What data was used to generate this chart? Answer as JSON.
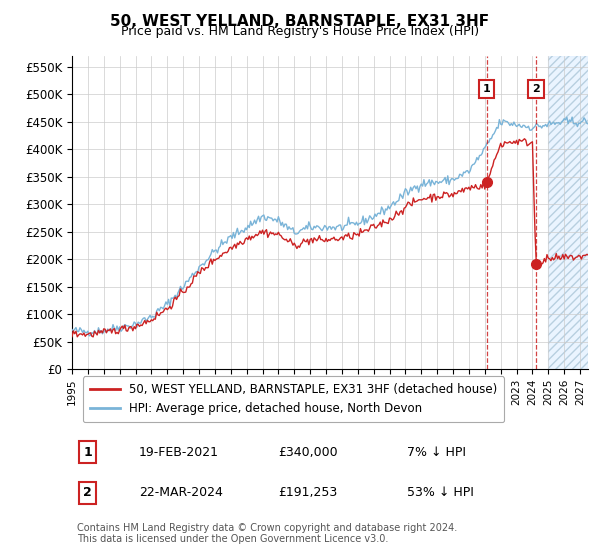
{
  "title": "50, WEST YELLAND, BARNSTAPLE, EX31 3HF",
  "subtitle": "Price paid vs. HM Land Registry's House Price Index (HPI)",
  "ylim": [
    0,
    570000
  ],
  "yticks": [
    0,
    50000,
    100000,
    150000,
    200000,
    250000,
    300000,
    350000,
    400000,
    450000,
    500000,
    550000
  ],
  "ytick_labels": [
    "£0",
    "£50K",
    "£100K",
    "£150K",
    "£200K",
    "£250K",
    "£300K",
    "£350K",
    "£400K",
    "£450K",
    "£500K",
    "£550K"
  ],
  "hpi_color": "#7ab4d8",
  "price_color": "#cc2222",
  "point1_year": 2021.12,
  "point1_price": 340000,
  "point1_date": "19-FEB-2021",
  "point1_pct": "7% ↓ HPI",
  "point2_year": 2024.22,
  "point2_price": 191253,
  "point2_date": "22-MAR-2024",
  "point2_pct": "53% ↓ HPI",
  "legend_label1": "50, WEST YELLAND, BARNSTAPLE, EX31 3HF (detached house)",
  "legend_label2": "HPI: Average price, detached house, North Devon",
  "footer": "Contains HM Land Registry data © Crown copyright and database right 2024.\nThis data is licensed under the Open Government Licence v3.0.",
  "background_color": "#ffffff",
  "grid_color": "#cccccc",
  "future_shade_color": "#ddeeff",
  "hpi_knots": [
    1995,
    1996,
    1997,
    1998,
    1999,
    2000,
    2001,
    2002,
    2003,
    2004,
    2005,
    2006,
    2007,
    2008,
    2009,
    2010,
    2011,
    2012,
    2013,
    2014,
    2015,
    2016,
    2017,
    2018,
    2019,
    2020,
    2021,
    2022,
    2023,
    2024,
    2025,
    2026,
    2027
  ],
  "hpi_vals": [
    70000,
    68000,
    70000,
    76000,
    82000,
    95000,
    118000,
    150000,
    185000,
    215000,
    240000,
    258000,
    278000,
    270000,
    248000,
    258000,
    258000,
    258000,
    265000,
    278000,
    295000,
    320000,
    338000,
    340000,
    345000,
    360000,
    400000,
    450000,
    445000,
    440000,
    445000,
    450000,
    450000
  ],
  "price_knots": [
    1995,
    1996,
    1997,
    1998,
    1999,
    2000,
    2001,
    2002,
    2003,
    2004,
    2005,
    2006,
    2007,
    2008,
    2009,
    2010,
    2011,
    2012,
    2013,
    2014,
    2015,
    2016,
    2017,
    2018,
    2019,
    2020,
    2021.0,
    2021.12,
    2021.5,
    2022,
    2023,
    2024.0,
    2024.22,
    2024.5,
    2025,
    2027
  ],
  "price_vals": [
    65000,
    63000,
    66000,
    72000,
    78000,
    90000,
    110000,
    140000,
    175000,
    200000,
    220000,
    238000,
    250000,
    245000,
    225000,
    235000,
    235000,
    238000,
    245000,
    258000,
    272000,
    295000,
    310000,
    315000,
    318000,
    330000,
    335000,
    340000,
    370000,
    410000,
    415000,
    412000,
    191253,
    195000,
    200000,
    205000
  ],
  "noise_seed": 42,
  "noise_hpi": 4000,
  "noise_price": 3500,
  "future_start": 2025.0,
  "xlim_left": 1995.0,
  "xlim_right": 2027.5
}
